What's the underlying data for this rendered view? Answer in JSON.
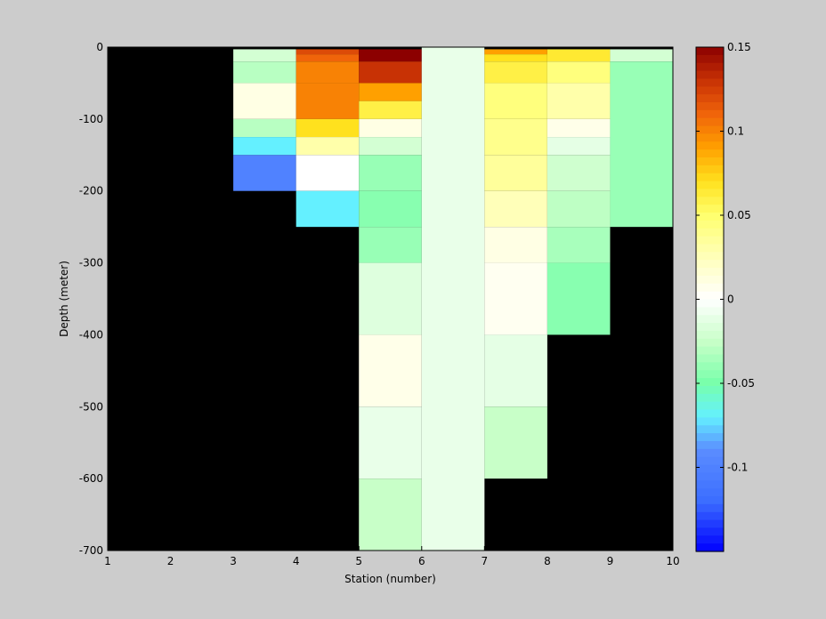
{
  "chart_data": {
    "type": "heatmap",
    "title": "",
    "xlabel": "Station (number)",
    "ylabel": "Depth (meter)",
    "xlim": [
      1,
      10
    ],
    "ylim": [
      -700,
      0
    ],
    "xticks": [
      "1",
      "2",
      "3",
      "4",
      "5",
      "6",
      "7",
      "8",
      "9",
      "10"
    ],
    "yticks": [
      "0",
      "-100",
      "-200",
      "-300",
      "-400",
      "-500",
      "-600",
      "-700"
    ],
    "background_color": "#000000",
    "colorbar": {
      "range": [
        -0.15,
        0.15
      ],
      "ticks": [
        "0.15",
        "0.1",
        "0.05",
        "0",
        "-0.05",
        "-0.1"
      ],
      "colormap": "jet-white-center"
    },
    "cell_depth_edges": [
      0,
      -3,
      -10,
      -20,
      -35,
      -50,
      -100,
      -125,
      -150,
      -200,
      -250,
      -300,
      -400,
      -500,
      -600,
      -700
    ],
    "columns": [
      {
        "x": [
          3,
          4
        ],
        "cells": [
          {
            "top": 0,
            "bottom": -3,
            "value": null
          },
          {
            "top": -3,
            "bottom": -20,
            "value": -0.02
          },
          {
            "top": -20,
            "bottom": -50,
            "value": -0.03
          },
          {
            "top": -50,
            "bottom": -100,
            "value": 0.01
          },
          {
            "top": -100,
            "bottom": -125,
            "value": -0.03
          },
          {
            "top": -125,
            "bottom": -150,
            "value": -0.07
          },
          {
            "top": -150,
            "bottom": -200,
            "value": -0.1
          }
        ]
      },
      {
        "x": [
          4,
          5
        ],
        "cells": [
          {
            "top": 0,
            "bottom": -3,
            "value": null
          },
          {
            "top": -3,
            "bottom": -10,
            "value": 0.12
          },
          {
            "top": -10,
            "bottom": -20,
            "value": 0.11
          },
          {
            "top": -20,
            "bottom": -50,
            "value": 0.1
          },
          {
            "top": -50,
            "bottom": -100,
            "value": 0.1
          },
          {
            "top": -100,
            "bottom": -125,
            "value": 0.07
          },
          {
            "top": -125,
            "bottom": -150,
            "value": 0.03
          },
          {
            "top": -150,
            "bottom": -200,
            "value": 0.0
          },
          {
            "top": -200,
            "bottom": -250,
            "value": -0.07
          }
        ]
      },
      {
        "x": [
          5,
          6
        ],
        "cells": [
          {
            "top": 0,
            "bottom": -3,
            "value": null
          },
          {
            "top": -3,
            "bottom": -20,
            "value": 0.15
          },
          {
            "top": -20,
            "bottom": -50,
            "value": 0.13
          },
          {
            "top": -50,
            "bottom": -75,
            "value": 0.09
          },
          {
            "top": -75,
            "bottom": -100,
            "value": 0.06
          },
          {
            "top": -100,
            "bottom": -125,
            "value": 0.01
          },
          {
            "top": -125,
            "bottom": -150,
            "value": -0.02
          },
          {
            "top": -150,
            "bottom": -200,
            "value": -0.04
          },
          {
            "top": -200,
            "bottom": -250,
            "value": -0.045
          },
          {
            "top": -250,
            "bottom": -300,
            "value": -0.04
          },
          {
            "top": -300,
            "bottom": -400,
            "value": -0.015
          },
          {
            "top": -400,
            "bottom": -500,
            "value": 0.008
          },
          {
            "top": -500,
            "bottom": -600,
            "value": -0.01
          },
          {
            "top": -600,
            "bottom": -700,
            "value": -0.025
          }
        ]
      },
      {
        "x": [
          6,
          7
        ],
        "cells": [
          {
            "top": 0,
            "bottom": -700,
            "value": -0.01
          }
        ]
      },
      {
        "x": [
          7,
          8
        ],
        "cells": [
          {
            "top": 0,
            "bottom": -3,
            "value": null
          },
          {
            "top": -3,
            "bottom": -10,
            "value": 0.09
          },
          {
            "top": -10,
            "bottom": -20,
            "value": 0.07
          },
          {
            "top": -20,
            "bottom": -50,
            "value": 0.06
          },
          {
            "top": -50,
            "bottom": -100,
            "value": 0.045
          },
          {
            "top": -100,
            "bottom": -150,
            "value": 0.04
          },
          {
            "top": -150,
            "bottom": -200,
            "value": 0.035
          },
          {
            "top": -200,
            "bottom": -250,
            "value": 0.025
          },
          {
            "top": -250,
            "bottom": -300,
            "value": 0.01
          },
          {
            "top": -300,
            "bottom": -400,
            "value": 0.005
          },
          {
            "top": -400,
            "bottom": -500,
            "value": -0.012
          },
          {
            "top": -500,
            "bottom": -600,
            "value": -0.025
          }
        ]
      },
      {
        "x": [
          8,
          9
        ],
        "cells": [
          {
            "top": 0,
            "bottom": -3,
            "value": null
          },
          {
            "top": -3,
            "bottom": -20,
            "value": 0.065
          },
          {
            "top": -20,
            "bottom": -50,
            "value": 0.045
          },
          {
            "top": -50,
            "bottom": -100,
            "value": 0.03
          },
          {
            "top": -100,
            "bottom": -125,
            "value": 0.008
          },
          {
            "top": -125,
            "bottom": -150,
            "value": -0.012
          },
          {
            "top": -150,
            "bottom": -200,
            "value": -0.022
          },
          {
            "top": -200,
            "bottom": -250,
            "value": -0.028
          },
          {
            "top": -250,
            "bottom": -300,
            "value": -0.035
          },
          {
            "top": -300,
            "bottom": -400,
            "value": -0.045
          }
        ]
      },
      {
        "x": [
          9,
          10
        ],
        "cells": [
          {
            "top": 0,
            "bottom": -3,
            "value": null
          },
          {
            "top": -3,
            "bottom": -20,
            "value": -0.02
          },
          {
            "top": -20,
            "bottom": -250,
            "value": -0.04
          }
        ]
      }
    ]
  }
}
